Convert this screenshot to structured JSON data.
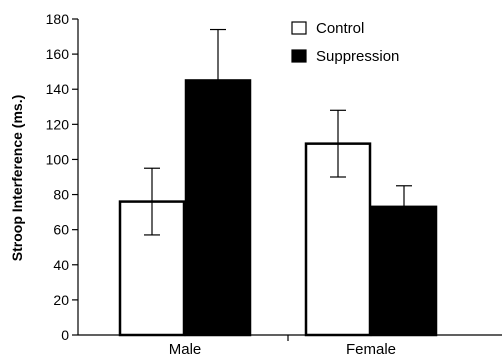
{
  "chart_data": {
    "type": "bar",
    "categories": [
      "Male",
      "Female"
    ],
    "series": [
      {
        "name": "Control",
        "values": [
          76,
          109
        ],
        "errors": [
          19,
          19
        ],
        "fill": "#ffffff",
        "stroke": "#000000"
      },
      {
        "name": "Suppression",
        "values": [
          145,
          73
        ],
        "errors": [
          29,
          12
        ],
        "fill": "#000000",
        "stroke": "#000000"
      }
    ],
    "title": "",
    "xlabel": "",
    "ylabel": "Stroop Interference (ms.)",
    "ylim": [
      0,
      180
    ],
    "yticks": [
      0,
      20,
      40,
      60,
      80,
      100,
      120,
      140,
      160,
      180
    ],
    "grid": false,
    "legend_position": "top-right"
  }
}
